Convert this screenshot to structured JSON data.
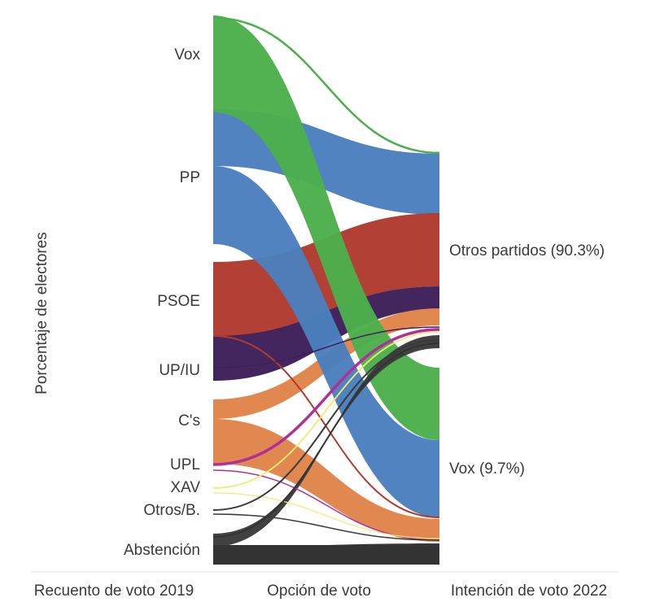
{
  "chart_data": {
    "type": "sankey",
    "ylabel": "Porcentaje de electores",
    "bottom_labels": {
      "left": "Recuento de voto 2019",
      "middle": "Opción de voto",
      "right": "Intención de voto 2022"
    },
    "left_nodes": [
      {
        "name": "Vox",
        "color": "#4caf4c"
      },
      {
        "name": "PP",
        "color": "#4a7fbd"
      },
      {
        "name": "PSOE",
        "color": "#b03a2e"
      },
      {
        "name": "UP/IU",
        "color": "#3e1f5a"
      },
      {
        "name": "C's",
        "color": "#e0844a"
      },
      {
        "name": "UPL",
        "color": "#b0309a"
      },
      {
        "name": "XAV",
        "color": "#f2ea70"
      },
      {
        "name": "Otros/B.",
        "color": "#3b3b3b"
      },
      {
        "name": "Abstención",
        "color": "#333333"
      }
    ],
    "right_nodes": [
      {
        "label": "Otros partidos (90.3%)",
        "share": 90.3
      },
      {
        "label": "Vox (9.7%)",
        "share": 9.7
      }
    ]
  }
}
